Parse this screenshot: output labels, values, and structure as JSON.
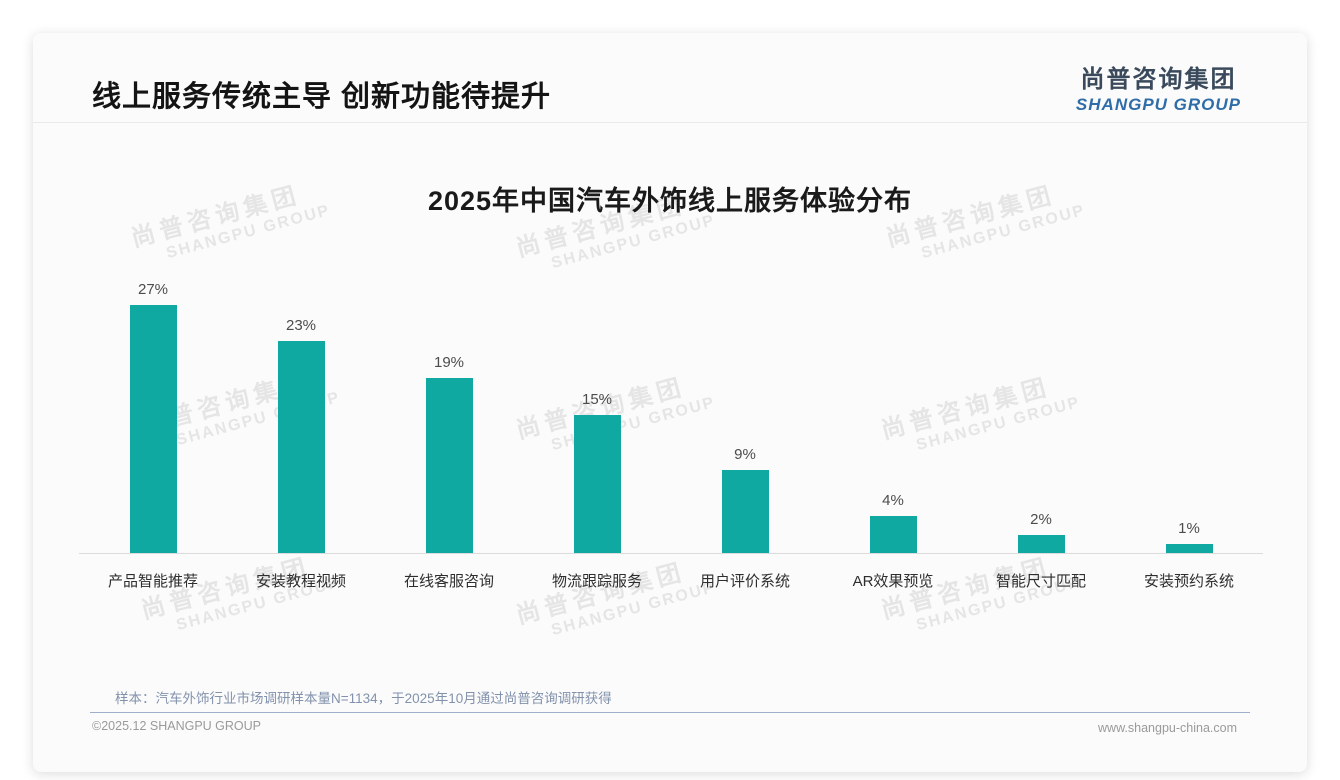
{
  "page": {
    "header": {
      "title": "线上服务传统主导 创新功能待提升"
    },
    "logo": {
      "cn": "尚普咨询集团",
      "en": "SHANGPU GROUP"
    },
    "watermark": {
      "cn": "尚普咨询集团",
      "en": "SHANGPU GROUP"
    },
    "footnote": {
      "sample": "样本：汽车外饰行业市场调研样本量N=1134，于2025年10月通过尚普咨询调研获得"
    },
    "footer": {
      "left": "©2025.12 SHANGPU GROUP",
      "right": "www.shangpu-china.com"
    }
  },
  "colors": {
    "bar": "#10a9a1",
    "logo_blue": "#2e6da8",
    "note_blue_gray": "#8292ac"
  },
  "chart_data": {
    "type": "bar",
    "title": "2025年中国汽车外饰线上服务体验分布",
    "categories": [
      "产品智能推荐",
      "安装教程视频",
      "在线客服咨询",
      "物流跟踪服务",
      "用户评价系统",
      "AR效果预览",
      "智能尺寸匹配",
      "安装预约系统"
    ],
    "values": [
      27,
      23,
      19,
      15,
      9,
      4,
      2,
      1
    ],
    "value_labels": [
      "27%",
      "23%",
      "19%",
      "15%",
      "9%",
      "4%",
      "2%",
      "1%"
    ],
    "xlabel": "",
    "ylabel": "",
    "ylim": [
      0,
      30
    ],
    "grid": false,
    "legend": false,
    "bar_color": "#10a9a1"
  }
}
